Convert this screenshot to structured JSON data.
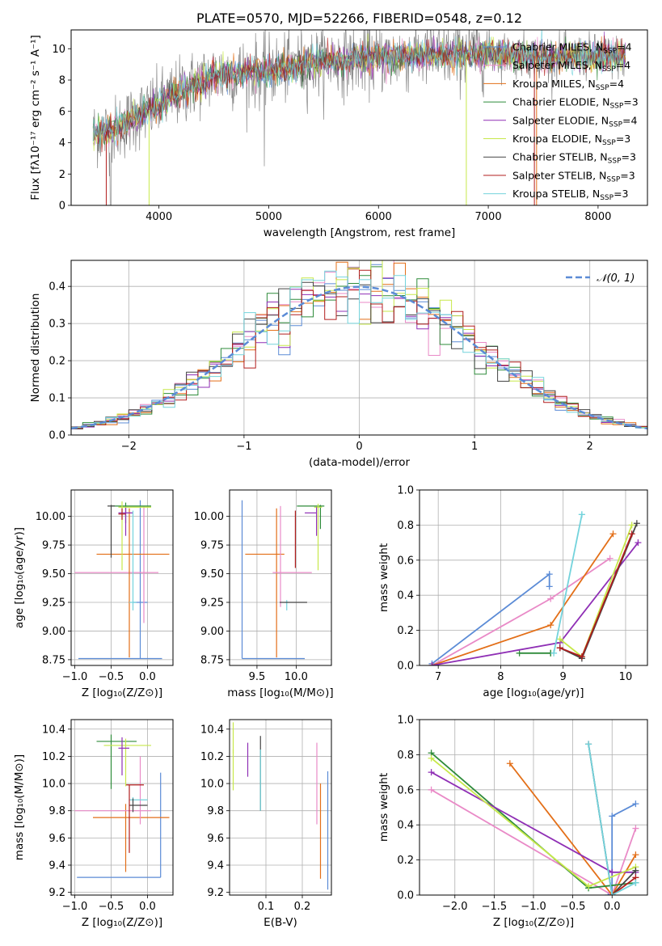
{
  "colors": {
    "chabrier_miles": "#5b8bd6",
    "salpeter_miles": "#e98ac7",
    "kroupa_miles": "#e36f18",
    "chabrier_elodie": "#2e8b3a",
    "salpeter_elodie": "#8f2fb5",
    "kroupa_elodie": "#c7e84a",
    "chabrier_stelib": "#444444",
    "salpeter_stelib": "#b21e1e",
    "kroupa_stelib": "#73d3dc",
    "data_spectrum": "#888888",
    "normal_curve": "#5b8bd6"
  },
  "chart_data": [
    {
      "id": "spectrum",
      "type": "line",
      "title": "PLATE=0570, MJD=52266, FIBERID=0548, z=0.12",
      "xlabel": "wavelength [Angstrom, rest frame]",
      "ylabel": "Flux [fλ10⁻¹⁷ erg cm⁻² s⁻¹ A⁻¹]",
      "xlim": [
        3200,
        8450
      ],
      "ylim": [
        0,
        11.2
      ],
      "xticks": [
        "4000",
        "5000",
        "6000",
        "7000",
        "8000"
      ],
      "yticks": [
        "0",
        "2",
        "4",
        "6",
        "8",
        "10"
      ],
      "legend_position": "top-right",
      "series": [
        {
          "name": "Chabrier MILES, N_SSP=4"
        },
        {
          "name": "Salpeter MILES, N_SSP=4"
        },
        {
          "name": "Kroupa MILES, N_SSP=4"
        },
        {
          "name": "Chabrier ELODIE, N_SSP=3"
        },
        {
          "name": "Salpeter ELODIE, N_SSP=4"
        },
        {
          "name": "Kroupa ELODIE, N_SSP=3"
        },
        {
          "name": "Chabrier STELIB, N_SSP=3"
        },
        {
          "name": "Salpeter STELIB, N_SSP=3"
        },
        {
          "name": "Kroupa STELIB, N_SSP=3"
        }
      ],
      "continuum_anchor_points": {
        "x": [
          3400,
          3600,
          3800,
          4000,
          4200,
          4500,
          5000,
          5500,
          6000,
          6500,
          7000,
          7500,
          8000,
          8250
        ],
        "y": [
          4.6,
          4.8,
          5.7,
          6.4,
          7.3,
          8.3,
          8.6,
          9.2,
          9.4,
          9.6,
          9.7,
          9.5,
          9.5,
          9.5
        ]
      }
    },
    {
      "id": "residuals",
      "type": "step",
      "xlabel": "(data-model)/error",
      "ylabel": "Normed distribution",
      "xlim": [
        -2.5,
        2.5
      ],
      "ylim": [
        0,
        0.47
      ],
      "xticks": [
        "−2",
        "−1",
        "0",
        "1",
        "2"
      ],
      "yticks": [
        "0.0",
        "0.1",
        "0.2",
        "0.3",
        "0.4"
      ],
      "grid": true,
      "legend_position": "top-right",
      "legend_label": "𝒩(0, 1)",
      "bin_width": 0.1
    },
    {
      "id": "age_vs_Z",
      "type": "errorbar",
      "xlabel": "Z [log₁₀(Z/Z⊙)]",
      "ylabel": "age  [log₁₀(age/yr)]",
      "xlim": [
        -1.05,
        0.35
      ],
      "ylim": [
        8.7,
        10.23
      ],
      "xticks": [
        "−1.0",
        "−0.5",
        "0.0"
      ],
      "yticks": [
        "8.75",
        "9.00",
        "9.25",
        "9.50",
        "9.75",
        "10.00"
      ],
      "grid": true,
      "points": [
        {
          "c": "chabrier_miles",
          "x": -0.1,
          "xerr": [
            0.85,
            0.3
          ],
          "y": 8.76,
          "yerr": [
            0,
            1.38
          ]
        },
        {
          "c": "chabrier_miles",
          "x": -0.05,
          "xerr": [
            0.15,
            0.05
          ],
          "y": 9.25,
          "yerr": [
            0,
            0
          ]
        },
        {
          "c": "salpeter_miles",
          "x": -0.05,
          "xerr": [
            0.95,
            0.2
          ],
          "y": 9.51,
          "yerr": [
            0.44,
            0.58
          ]
        },
        {
          "c": "kroupa_miles",
          "x": -0.25,
          "xerr": [
            0.45,
            0.55
          ],
          "y": 9.67,
          "yerr": [
            0.9,
            0.4
          ]
        },
        {
          "c": "chabrier_elodie",
          "x": -0.3,
          "xerr": [
            0.2,
            0.35
          ],
          "y": 10.09,
          "yerr": [
            0.15,
            0.03
          ]
        },
        {
          "c": "salpeter_elodie",
          "x": -0.3,
          "xerr": [
            0.1,
            0.1
          ],
          "y": 10.03,
          "yerr": [
            0.2,
            0.05
          ]
        },
        {
          "c": "kroupa_elodie",
          "x": -0.35,
          "xerr": [
            0.05,
            0.4
          ],
          "y": 10.08,
          "yerr": [
            0.55,
            0.05
          ]
        },
        {
          "c": "chabrier_stelib",
          "x": -0.5,
          "xerr": [
            0.05,
            0.05
          ],
          "y": 10.09,
          "yerr": [
            0.45,
            0.01
          ]
        },
        {
          "c": "salpeter_stelib",
          "x": -0.35,
          "xerr": [
            0.05,
            0.05
          ],
          "y": 10.02,
          "yerr": [
            0.05,
            0.05
          ]
        },
        {
          "c": "kroupa_stelib",
          "x": -0.2,
          "xerr": [
            0.05,
            0.05
          ],
          "y": 9.25,
          "yerr": [
            0.07,
            0.8
          ]
        }
      ]
    },
    {
      "id": "age_vs_mass",
      "type": "errorbar",
      "xlabel": "mass [log₁₀(M/M⊙)]",
      "ylabel": "",
      "xlim": [
        9.15,
        10.45
      ],
      "ylim": [
        8.7,
        10.23
      ],
      "xticks": [
        "9.5",
        "10.0"
      ],
      "yticks": [
        "8.75",
        "9.00",
        "9.25",
        "9.50",
        "9.75",
        "10.00"
      ],
      "grid": true,
      "points": [
        {
          "c": "chabrier_miles",
          "x": 9.31,
          "xerr": [
            0,
            0.8
          ],
          "y": 8.76,
          "yerr": [
            0,
            1.38
          ]
        },
        {
          "c": "kroupa_miles",
          "x": 9.75,
          "xerr": [
            0.4,
            0.1
          ],
          "y": 9.67,
          "yerr": [
            0.9,
            0.4
          ]
        },
        {
          "c": "salpeter_miles",
          "x": 9.8,
          "xerr": [
            0.1,
            0.4
          ],
          "y": 9.51,
          "yerr": [
            0.3,
            0.58
          ]
        },
        {
          "c": "kroupa_stelib",
          "x": 9.88,
          "xerr": [
            0.02,
            0.02
          ],
          "y": 9.25,
          "yerr": [
            0.07,
            0.02
          ]
        },
        {
          "c": "chabrier_stelib",
          "x": 9.84,
          "xerr": [
            0.05,
            0.3
          ],
          "y": 9.25,
          "yerr": [
            0,
            0
          ]
        },
        {
          "c": "salpeter_stelib",
          "x": 9.99,
          "xerr": [
            0,
            0
          ],
          "y": 10.02,
          "yerr": [
            0.47,
            0.03
          ]
        },
        {
          "c": "chabrier_elodie",
          "x": 10.31,
          "xerr": [
            0.3,
            0.05
          ],
          "y": 10.09,
          "yerr": [
            0.2,
            0.01
          ]
        },
        {
          "c": "kroupa_elodie",
          "x": 10.28,
          "xerr": [
            0.05,
            0.05
          ],
          "y": 10.08,
          "yerr": [
            0.55,
            0.03
          ]
        },
        {
          "c": "salpeter_elodie",
          "x": 10.26,
          "xerr": [
            0.15,
            0
          ],
          "y": 10.03,
          "yerr": [
            0.2,
            0.05
          ]
        }
      ]
    },
    {
      "id": "mass_weight_vs_age",
      "type": "line",
      "xlabel": "age  [log₁₀(age/yr)]",
      "ylabel": "mass weight",
      "xlim": [
        6.7,
        10.35
      ],
      "ylim": [
        0,
        1.0
      ],
      "xticks": [
        "7",
        "8",
        "9",
        "10"
      ],
      "yticks": [
        "0.0",
        "0.2",
        "0.4",
        "0.6",
        "0.8",
        "1.0"
      ],
      "grid": true,
      "series": [
        {
          "c": "chabrier_miles",
          "x": [
            6.9,
            8.78,
            8.78
          ],
          "y": [
            0.01,
            0.52,
            0.45
          ]
        },
        {
          "c": "salpeter_miles",
          "x": [
            6.9,
            8.8,
            9.75
          ],
          "y": [
            0.0,
            0.38,
            0.61
          ]
        },
        {
          "c": "kroupa_miles",
          "x": [
            6.9,
            8.8,
            9.8
          ],
          "y": [
            0.0,
            0.23,
            0.75
          ]
        },
        {
          "c": "chabrier_elodie",
          "x": [
            8.3,
            8.8,
            8.8
          ],
          "y": [
            0.07,
            0.07,
            0.07
          ]
        },
        {
          "c": "salpeter_elodie",
          "x": [
            6.9,
            8.95,
            10.2
          ],
          "y": [
            0.0,
            0.13,
            0.7
          ]
        },
        {
          "c": "kroupa_elodie",
          "x": [
            8.95,
            9.3,
            10.1
          ],
          "y": [
            0.15,
            0.05,
            0.8
          ]
        },
        {
          "c": "chabrier_stelib",
          "x": [
            8.95,
            9.3,
            10.18
          ],
          "y": [
            0.1,
            0.04,
            0.81
          ]
        },
        {
          "c": "salpeter_stelib",
          "x": [
            8.95,
            9.3,
            10.1
          ],
          "y": [
            0.1,
            0.05,
            0.75
          ]
        },
        {
          "c": "kroupa_stelib",
          "x": [
            8.85,
            9.3,
            9.3
          ],
          "y": [
            0.07,
            0.86,
            0.86
          ]
        }
      ]
    },
    {
      "id": "mass_vs_Z",
      "type": "errorbar",
      "xlabel": "Z [log₁₀(Z/Z⊙)]",
      "ylabel": "mass [log₁₀(M/M⊙)]",
      "xlim": [
        -1.05,
        0.35
      ],
      "ylim": [
        9.18,
        10.47
      ],
      "xticks": [
        "−1.0",
        "−0.5",
        "0.0"
      ],
      "yticks": [
        "9.2",
        "9.4",
        "9.6",
        "9.8",
        "10.0",
        "10.2",
        "10.4"
      ],
      "grid": true,
      "points": [
        {
          "c": "chabrier_miles",
          "x": 0.18,
          "xerr": [
            1.15,
            0
          ],
          "y": 9.31,
          "yerr": [
            0,
            0.77
          ]
        },
        {
          "c": "kroupa_miles",
          "x": -0.3,
          "xerr": [
            0.45,
            0.6
          ],
          "y": 9.75,
          "yerr": [
            0.4,
            0.1
          ]
        },
        {
          "c": "salpeter_miles",
          "x": -0.1,
          "xerr": [
            0.9,
            0.15
          ],
          "y": 9.8,
          "yerr": [
            0.1,
            0.4
          ]
        },
        {
          "c": "kroupa_stelib",
          "x": -0.2,
          "xerr": [
            0.05,
            0.2
          ],
          "y": 9.88,
          "yerr": [
            0.02,
            0.02
          ]
        },
        {
          "c": "chabrier_stelib",
          "x": -0.2,
          "xerr": [
            0.05,
            0.2
          ],
          "y": 9.84,
          "yerr": [
            0.05,
            0.05
          ]
        },
        {
          "c": "salpeter_stelib",
          "x": -0.25,
          "xerr": [
            0.05,
            0.2
          ],
          "y": 9.99,
          "yerr": [
            0.5,
            0
          ]
        },
        {
          "c": "chabrier_elodie",
          "x": -0.5,
          "xerr": [
            0.2,
            0.35
          ],
          "y": 10.31,
          "yerr": [
            0.35,
            0.05
          ]
        },
        {
          "c": "kroupa_elodie",
          "x": -0.3,
          "xerr": [
            0.3,
            0.35
          ],
          "y": 10.28,
          "yerr": [
            0.3,
            0.05
          ]
        },
        {
          "c": "salpeter_elodie",
          "x": -0.35,
          "xerr": [
            0.05,
            0.1
          ],
          "y": 10.26,
          "yerr": [
            0.2,
            0.08
          ]
        }
      ]
    },
    {
      "id": "mass_vs_ebv",
      "type": "errorbar",
      "xlabel": "E(B-V)",
      "ylabel": "",
      "xlim": [
        0.0,
        0.28
      ],
      "ylim": [
        9.18,
        10.47
      ],
      "xticks": [
        "0.1",
        "0.2"
      ],
      "yticks": [
        "9.2",
        "9.4",
        "9.6",
        "9.8",
        "10.0",
        "10.2",
        "10.4"
      ],
      "grid": true,
      "points": [
        {
          "c": "kroupa_elodie",
          "x": 0.01,
          "yerr": [
            0.08,
            0.15
          ],
          "y": 10.3
        },
        {
          "c": "kroupa_elodie",
          "x": 0.01,
          "yerr": [
            0.2,
            0.1
          ],
          "y": 10.15
        },
        {
          "c": "salpeter_elodie",
          "x": 0.05,
          "yerr": [
            0.15,
            0.1
          ],
          "y": 10.2
        },
        {
          "c": "chabrier_stelib",
          "x": 0.085,
          "yerr": [
            0.5,
            0.05
          ],
          "y": 10.3
        },
        {
          "c": "kroupa_stelib",
          "x": 0.085,
          "yerr": [
            0.42,
            0.03
          ],
          "y": 10.22
        },
        {
          "c": "salpeter_miles",
          "x": 0.24,
          "yerr": [
            0.6,
            0.0
          ],
          "y": 10.3
        },
        {
          "c": "kroupa_miles",
          "x": 0.25,
          "yerr": [
            0.7,
            0.0
          ],
          "y": 10.0
        },
        {
          "c": "chabrier_miles",
          "x": 0.27,
          "yerr": [
            0.87,
            0.0
          ],
          "y": 10.09
        }
      ]
    },
    {
      "id": "mass_weight_vs_Z",
      "type": "line",
      "xlabel": "Z [log₁₀(Z/Z⊙)]",
      "ylabel": "mass weight",
      "xlim": [
        -2.45,
        0.45
      ],
      "ylim": [
        0,
        1.0
      ],
      "xticks": [
        "−2.0",
        "−1.5",
        "−1.0",
        "−0.5",
        "0.0"
      ],
      "yticks": [
        "0.0",
        "0.2",
        "0.4",
        "0.6",
        "0.8",
        "1.0"
      ],
      "grid": true,
      "series": [
        {
          "c": "chabrier_miles",
          "x": [
            0.3,
            0.0,
            0.0,
            -0.05
          ],
          "y": [
            0.52,
            0.45,
            0.0,
            0.0
          ]
        },
        {
          "c": "salpeter_miles",
          "x": [
            -2.3,
            0.0,
            0.3
          ],
          "y": [
            0.6,
            0.0,
            0.38
          ]
        },
        {
          "c": "kroupa_miles",
          "x": [
            -1.3,
            0.0,
            0.3
          ],
          "y": [
            0.75,
            0.0,
            0.23
          ]
        },
        {
          "c": "chabrier_elodie",
          "x": [
            -2.3,
            -0.3,
            0.3
          ],
          "y": [
            0.81,
            0.04,
            0.07
          ]
        },
        {
          "c": "salpeter_elodie",
          "x": [
            -2.3,
            0.0,
            0.3
          ],
          "y": [
            0.7,
            0.13,
            0.13
          ]
        },
        {
          "c": "kroupa_elodie",
          "x": [
            -2.3,
            -0.3,
            0.3
          ],
          "y": [
            0.78,
            0.05,
            0.16
          ]
        },
        {
          "c": "chabrier_stelib",
          "x": [
            -0.3,
            0.0,
            0.3
          ],
          "y": [
            0.86,
            0.0,
            0.14
          ]
        },
        {
          "c": "salpeter_stelib",
          "x": [
            0.0,
            0.3
          ],
          "y": [
            0.0,
            0.1
          ]
        },
        {
          "c": "kroupa_stelib",
          "x": [
            -0.3,
            0.0,
            0.3
          ],
          "y": [
            0.86,
            0.0,
            0.07
          ]
        }
      ]
    }
  ]
}
